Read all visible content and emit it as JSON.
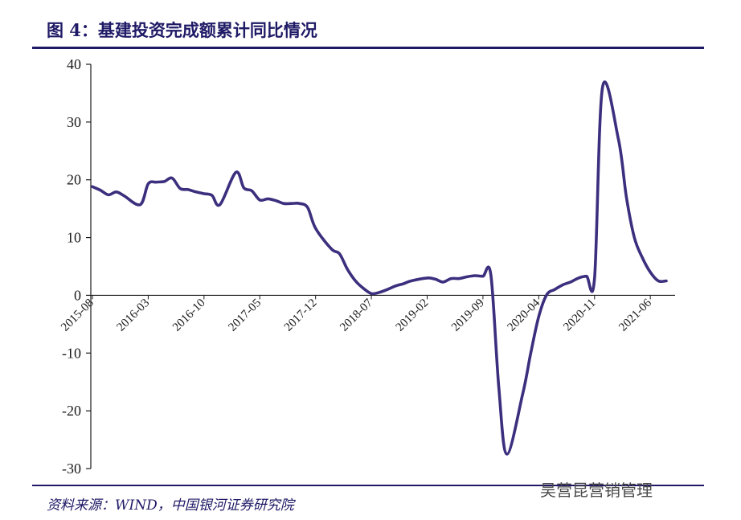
{
  "figure": {
    "title": "图 4：基建投资完成额累计同比情况",
    "source": "资料来源：WIND，中国银河证券研究院",
    "watermark": "吴营昆营销管理"
  },
  "chart_data": {
    "type": "line",
    "title": "图 4：基建投资完成额累计同比情况",
    "xlabel": "",
    "ylabel": "",
    "ylim": [
      -30,
      40
    ],
    "yticks": [
      -30,
      -20,
      -10,
      0,
      10,
      20,
      30,
      40
    ],
    "xticks": [
      "2015-08",
      "2016-03",
      "2016-10",
      "2017-05",
      "2017-12",
      "2018-07",
      "2019-02",
      "2019-09",
      "2020-04",
      "2020-11",
      "2021-06"
    ],
    "grid": false,
    "legend": "none",
    "color": "#3b2f7e",
    "x": [
      "2015-08",
      "2015-09",
      "2015-10",
      "2015-11",
      "2015-12",
      "2016-02",
      "2016-03",
      "2016-04",
      "2016-05",
      "2016-06",
      "2016-07",
      "2016-08",
      "2016-09",
      "2016-10",
      "2016-11",
      "2016-12",
      "2017-02",
      "2017-03",
      "2017-04",
      "2017-05",
      "2017-06",
      "2017-07",
      "2017-08",
      "2017-09",
      "2017-10",
      "2017-11",
      "2017-12",
      "2018-02",
      "2018-03",
      "2018-04",
      "2018-05",
      "2018-06",
      "2018-07",
      "2018-08",
      "2018-09",
      "2018-10",
      "2018-11",
      "2018-12",
      "2019-02",
      "2019-03",
      "2019-04",
      "2019-05",
      "2019-06",
      "2019-07",
      "2019-08",
      "2019-09",
      "2019-10",
      "2019-11",
      "2019-12",
      "2020-02",
      "2020-03",
      "2020-04",
      "2020-05",
      "2020-06",
      "2020-07",
      "2020-08",
      "2020-09",
      "2020-10",
      "2020-11",
      "2020-12",
      "2021-02",
      "2021-03",
      "2021-04",
      "2021-05",
      "2021-06",
      "2021-07",
      "2021-08"
    ],
    "values": [
      18.8,
      18.2,
      17.4,
      17.9,
      17.2,
      15.7,
      19.3,
      19.6,
      19.7,
      20.3,
      18.5,
      18.3,
      17.9,
      17.6,
      17.3,
      15.7,
      21.3,
      18.6,
      18.1,
      16.5,
      16.7,
      16.4,
      15.9,
      15.9,
      15.9,
      15.2,
      11.6,
      8.0,
      7.2,
      4.5,
      2.5,
      1.2,
      0.3,
      0.5,
      1.0,
      1.6,
      2.0,
      2.5,
      3.0,
      2.8,
      2.3,
      2.9,
      2.9,
      3.2,
      3.4,
      3.3,
      3.5,
      -16.2,
      -27.5,
      -17.0,
      -10.0,
      -3.7,
      0.1,
      1.0,
      1.8,
      2.3,
      3.0,
      3.3,
      3.0,
      36.0,
      27.0,
      17.0,
      10.0,
      6.5,
      4.0,
      2.5,
      2.5
    ]
  }
}
